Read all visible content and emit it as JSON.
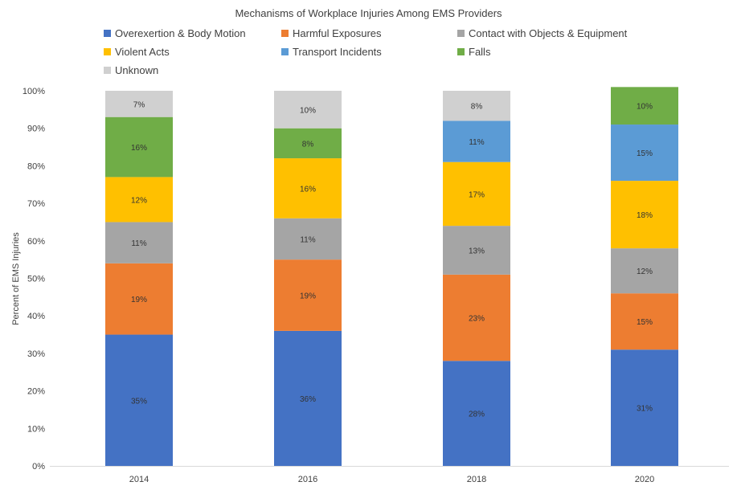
{
  "chart_data": {
    "type": "bar",
    "stacked": true,
    "title": "Mechanisms of Workplace Injuries Among EMS Providers",
    "xlabel": "",
    "ylabel": "Percent of EMS Injuries",
    "ylim": [
      0,
      100
    ],
    "y_tick_labels": [
      "0%",
      "10%",
      "20%",
      "30%",
      "40%",
      "50%",
      "60%",
      "70%",
      "80%",
      "90%",
      "100%"
    ],
    "categories": [
      "2014",
      "2016",
      "2018",
      "2020"
    ],
    "legend_position": "top",
    "grid": false,
    "series": [
      {
        "name": "Overexertion & Body Motion",
        "color": "#4472c4",
        "values": [
          35,
          36,
          28,
          31
        ],
        "labels": [
          "35%",
          "36%",
          "28%",
          "31%"
        ]
      },
      {
        "name": "Harmful Exposures",
        "color": "#ed7d31",
        "values": [
          19,
          19,
          23,
          15
        ],
        "labels": [
          "19%",
          "19%",
          "23%",
          "15%"
        ]
      },
      {
        "name": "Contact with Objects & Equipment",
        "color": "#a5a5a5",
        "values": [
          11,
          11,
          13,
          12
        ],
        "labels": [
          "11%",
          "11%",
          "13%",
          "12%"
        ]
      },
      {
        "name": "Violent Acts",
        "color": "#ffc000",
        "values": [
          12,
          16,
          17,
          18
        ],
        "labels": [
          "12%",
          "16%",
          "17%",
          "18%"
        ]
      },
      {
        "name": "Transport Incidents",
        "color": "#5b9bd5",
        "values": [
          0,
          0,
          11,
          15
        ],
        "labels": [
          "",
          "",
          "11%",
          "15%"
        ]
      },
      {
        "name": "Falls",
        "color": "#70ad47",
        "values": [
          16,
          8,
          0,
          10
        ],
        "labels": [
          "16%",
          "8%",
          "",
          "10%"
        ]
      },
      {
        "name": "Unknown",
        "color": "#d0d0d0",
        "values": [
          7,
          10,
          8,
          0
        ],
        "labels": [
          "7%",
          "10%",
          "8%",
          ""
        ]
      }
    ]
  }
}
